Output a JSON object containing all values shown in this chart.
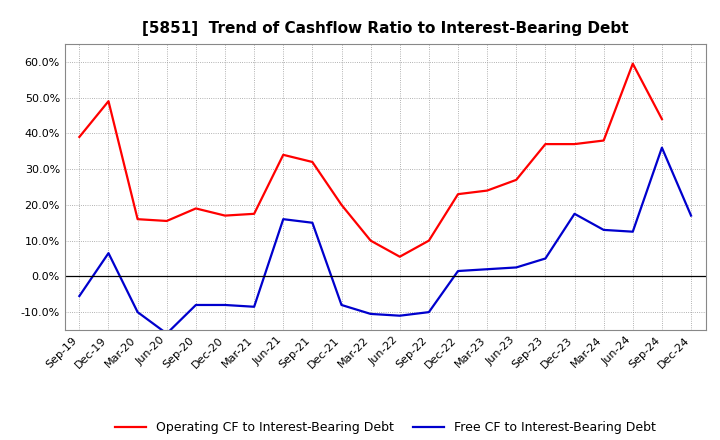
{
  "title": "[5851]  Trend of Cashflow Ratio to Interest-Bearing Debt",
  "x_labels": [
    "Sep-19",
    "Dec-19",
    "Mar-20",
    "Jun-20",
    "Sep-20",
    "Dec-20",
    "Mar-21",
    "Jun-21",
    "Sep-21",
    "Dec-21",
    "Mar-22",
    "Jun-22",
    "Sep-22",
    "Dec-22",
    "Mar-23",
    "Jun-23",
    "Sep-23",
    "Dec-23",
    "Mar-24",
    "Jun-24",
    "Sep-24",
    "Dec-24"
  ],
  "operating_cf": [
    39.0,
    49.0,
    16.0,
    15.5,
    19.0,
    17.0,
    17.5,
    34.0,
    32.0,
    20.0,
    10.0,
    5.5,
    10.0,
    23.0,
    24.0,
    27.0,
    37.0,
    37.0,
    38.0,
    59.5,
    44.0,
    null
  ],
  "free_cf": [
    -5.5,
    6.5,
    -10.0,
    -16.0,
    -8.0,
    -8.0,
    -8.5,
    16.0,
    15.0,
    -8.0,
    -10.5,
    -11.0,
    -10.0,
    1.5,
    2.0,
    2.5,
    5.0,
    17.5,
    13.0,
    12.5,
    36.0,
    17.0
  ],
  "operating_color": "#ff0000",
  "free_color": "#0000cd",
  "background_color": "#ffffff",
  "plot_bg_color": "#ffffff",
  "ylim": [
    -15,
    65
  ],
  "yticks": [
    -10,
    0,
    10,
    20,
    30,
    40,
    50,
    60
  ],
  "legend_op": "Operating CF to Interest-Bearing Debt",
  "legend_free": "Free CF to Interest-Bearing Debt",
  "title_fontsize": 11,
  "axis_fontsize": 8,
  "legend_fontsize": 9,
  "line_width": 1.6
}
